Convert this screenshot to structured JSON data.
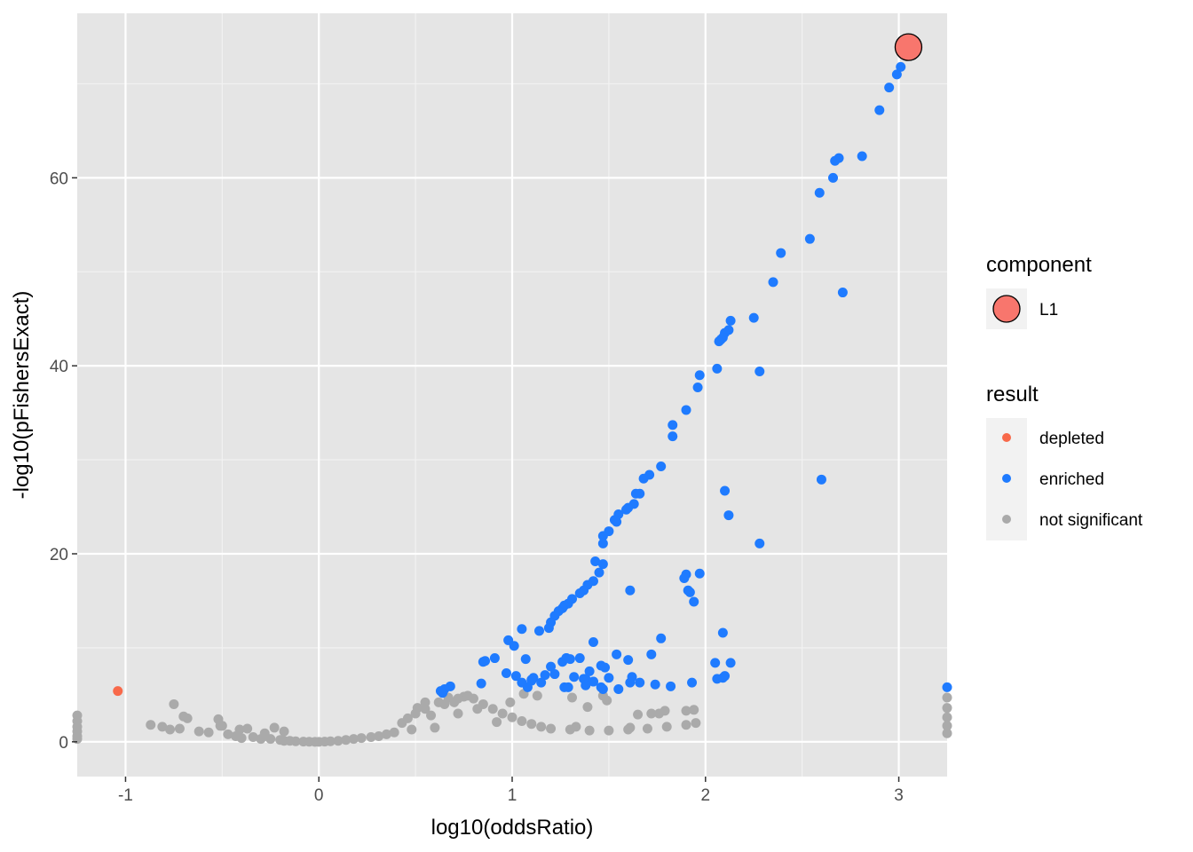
{
  "chart_data": {
    "type": "scatter",
    "xlabel": "log10(oddsRatio)",
    "ylabel": "-log10(pFishersExact)",
    "xlim": [
      -1.25,
      3.25
    ],
    "ylim": [
      -3.7,
      77.5
    ],
    "x_ticks": [
      -1,
      0,
      1,
      2,
      3
    ],
    "x_tick_labels": [
      "-1",
      "0",
      "1",
      "2",
      "3"
    ],
    "y_ticks": [
      0,
      20,
      40,
      60
    ],
    "y_tick_labels": [
      "0",
      "20",
      "40",
      "60"
    ],
    "grid": true,
    "background": "#e5e5e5",
    "legend_position": "right",
    "colors": {
      "depleted": "#f8694a",
      "enriched": "#1f7bff",
      "not significant": "#aaaaaa",
      "component_L1": "#f8766d"
    },
    "legends": {
      "component": {
        "title": "component",
        "entries": [
          "L1"
        ]
      },
      "result": {
        "title": "result",
        "entries": [
          "depleted",
          "enriched",
          "not significant"
        ]
      }
    },
    "series": [
      {
        "name": "enriched",
        "x": [
          3.01,
          2.99,
          2.95,
          2.9,
          2.81,
          2.69,
          2.67,
          2.66,
          2.59,
          2.54,
          2.39,
          2.35,
          2.25,
          2.13,
          2.12,
          2.1,
          2.09,
          2.08,
          2.07,
          2.06,
          1.97,
          1.96,
          1.9,
          1.83,
          1.83,
          1.77,
          1.71,
          1.68,
          1.66,
          1.64,
          1.63,
          1.6,
          1.59,
          1.55,
          1.54,
          1.53,
          1.5,
          1.47,
          1.47,
          1.43,
          1.47,
          1.45,
          1.42,
          1.39,
          1.37,
          1.35,
          1.31,
          1.29,
          1.27,
          1.26,
          1.24,
          1.22,
          1.2,
          1.19,
          1.14,
          1.42,
          1.54,
          1.6,
          1.28,
          1.35,
          1.32,
          1.38,
          1.42,
          1.46,
          1.55,
          1.61,
          1.97,
          1.9,
          1.89,
          1.91,
          1.92,
          1.94,
          2.1,
          2.12,
          2.28,
          2.28,
          2.6,
          2.71,
          1.05,
          0.98,
          1.01,
          1.07,
          1.17,
          1.11,
          1.1,
          1.05,
          1.2,
          1.26,
          1.28,
          1.3,
          1.22,
          1.37,
          1.4,
          1.46,
          1.48,
          1.27,
          1.42,
          1.47,
          1.66,
          1.61,
          1.77,
          1.72,
          1.93,
          1.82,
          1.74,
          2.09,
          2.1,
          2.06,
          2.09,
          2.13,
          2.05,
          0.85,
          0.91,
          0.86,
          0.97,
          1.02,
          0.84,
          0.68,
          0.65,
          0.64,
          0.63,
          1.1,
          1.15,
          1.08,
          1.29,
          1.38,
          1.5,
          1.62,
          3.25
        ],
        "y": [
          71.8,
          71.0,
          69.6,
          67.2,
          62.3,
          62.1,
          61.8,
          60.0,
          58.4,
          53.5,
          52.0,
          48.9,
          45.1,
          44.8,
          43.8,
          43.5,
          43.0,
          42.8,
          42.6,
          39.7,
          39.0,
          37.7,
          35.3,
          32.5,
          33.7,
          29.3,
          28.4,
          28.0,
          26.4,
          26.4,
          25.3,
          24.9,
          24.7,
          24.2,
          23.4,
          23.6,
          22.4,
          21.9,
          21.1,
          19.2,
          18.9,
          18.0,
          17.1,
          16.7,
          16.1,
          15.8,
          15.2,
          14.7,
          14.5,
          14.2,
          13.9,
          13.4,
          12.7,
          12.1,
          11.8,
          10.6,
          9.3,
          8.7,
          8.9,
          8.9,
          6.9,
          6.7,
          6.4,
          5.8,
          5.6,
          16.1,
          17.9,
          17.8,
          17.4,
          16.1,
          15.9,
          14.9,
          26.7,
          24.1,
          21.1,
          39.4,
          27.9,
          47.8,
          12.0,
          10.8,
          10.2,
          8.8,
          7.1,
          6.8,
          6.5,
          6.3,
          8.0,
          8.5,
          8.9,
          8.8,
          7.2,
          6.7,
          7.5,
          8.1,
          7.9,
          5.8,
          6.4,
          5.6,
          6.3,
          6.3,
          11.0,
          9.3,
          6.3,
          5.9,
          6.1,
          11.6,
          7.0,
          6.7,
          6.8,
          8.4,
          8.4,
          8.5,
          8.9,
          8.6,
          7.3,
          7.0,
          6.2,
          5.9,
          5.6,
          5.2,
          5.4,
          6.6,
          6.3,
          5.8,
          5.8,
          6.0,
          6.8,
          6.9,
          5.8
        ],
        "color": "#1f7bff"
      },
      {
        "name": "depleted",
        "x": [
          -1.04
        ],
        "y": [
          5.4
        ],
        "color": "#f8694a"
      },
      {
        "name": "not significant",
        "x": [
          -1.25,
          -1.25,
          -1.25,
          -1.25,
          -1.25,
          -1.25,
          -0.87,
          -0.81,
          -0.77,
          -0.75,
          -0.72,
          -0.7,
          -0.68,
          -0.62,
          -0.57,
          -0.52,
          -0.51,
          -0.47,
          -0.43,
          -0.4,
          -0.37,
          -0.34,
          -0.3,
          -0.28,
          -0.25,
          -0.2,
          -0.18,
          -0.15,
          -0.12,
          -0.08,
          -0.05,
          -0.02,
          0.0,
          0.03,
          0.06,
          0.1,
          0.14,
          0.18,
          0.22,
          0.27,
          0.31,
          0.35,
          0.39,
          0.43,
          0.46,
          0.48,
          0.5,
          0.55,
          0.58,
          0.6,
          0.65,
          0.7,
          0.72,
          0.75,
          0.8,
          0.85,
          0.9,
          0.95,
          1.0,
          1.05,
          1.1,
          1.15,
          1.2,
          1.3,
          1.4,
          1.5,
          1.6,
          1.7,
          1.8,
          1.9,
          1.95,
          1.76,
          1.79,
          1.9,
          1.94,
          1.65,
          1.72,
          1.61,
          1.39,
          1.33,
          1.31,
          1.47,
          1.49,
          1.13,
          1.06,
          0.99,
          0.92,
          0.82,
          0.77,
          0.72,
          0.67,
          0.62,
          0.55,
          0.51,
          -0.5,
          -0.41,
          -0.23,
          -0.18,
          -0.28,
          3.25,
          3.25,
          3.25,
          3.25,
          3.25
        ],
        "y": [
          2.8,
          2.2,
          1.6,
          1.1,
          0.6,
          0.3,
          1.8,
          1.6,
          1.3,
          4.0,
          1.4,
          2.7,
          2.5,
          1.1,
          1.0,
          2.4,
          1.7,
          0.8,
          0.6,
          0.4,
          1.4,
          0.5,
          0.3,
          0.6,
          0.3,
          0.2,
          0.1,
          0.1,
          0.05,
          0.02,
          0.01,
          0.0,
          0.0,
          0.02,
          0.05,
          0.1,
          0.2,
          0.3,
          0.4,
          0.5,
          0.6,
          0.8,
          1.0,
          2.0,
          2.5,
          1.3,
          3.0,
          3.5,
          2.8,
          1.5,
          4.0,
          4.2,
          3.0,
          4.8,
          4.6,
          4.0,
          3.5,
          3.0,
          2.6,
          2.2,
          1.9,
          1.6,
          1.4,
          1.3,
          1.2,
          1.2,
          1.3,
          1.4,
          1.6,
          1.8,
          2.0,
          3.0,
          3.3,
          3.3,
          3.4,
          2.9,
          3.0,
          1.5,
          3.7,
          1.6,
          4.7,
          4.9,
          4.4,
          4.9,
          5.1,
          4.2,
          2.1,
          3.5,
          4.9,
          4.6,
          4.7,
          4.2,
          4.2,
          3.6,
          1.7,
          1.3,
          1.5,
          1.1,
          0.9,
          4.7,
          3.6,
          2.6,
          1.7,
          0.9
        ],
        "color": "#aaaaaa"
      }
    ],
    "highlight": {
      "name": "L1",
      "legend": "component",
      "x": 3.05,
      "y": 73.9,
      "color": "#f8766d"
    }
  }
}
